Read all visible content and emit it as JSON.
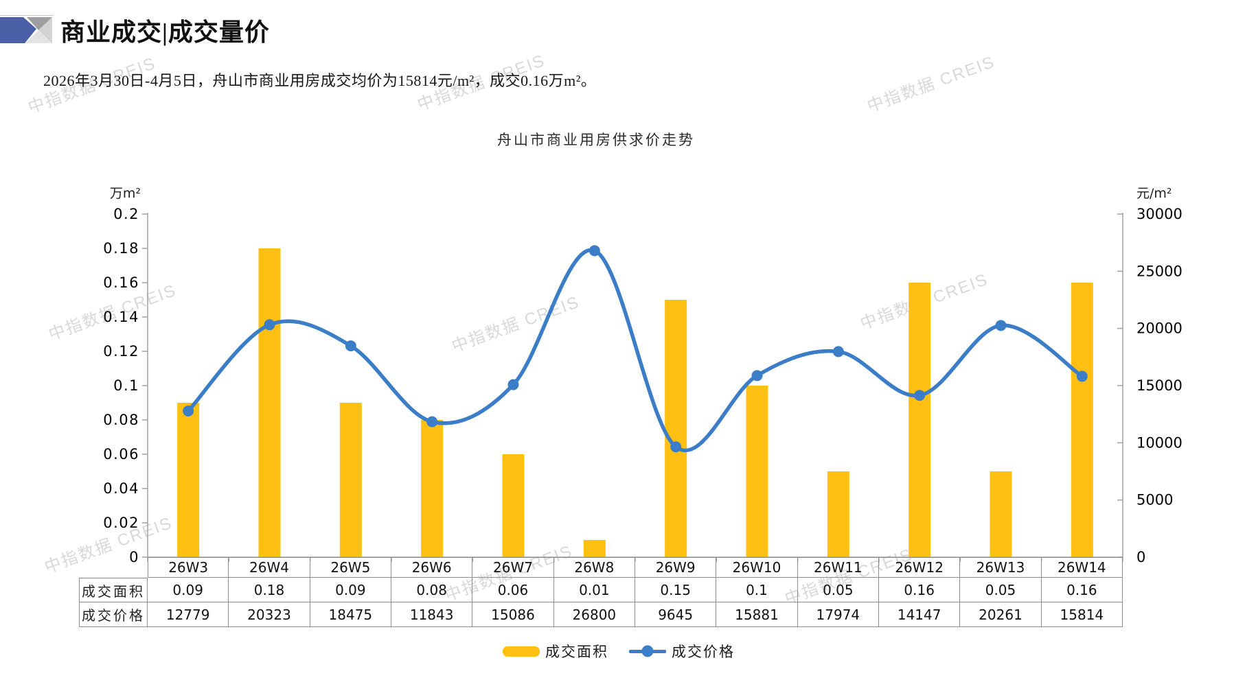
{
  "page": {
    "title": "商业成交|成交量价",
    "subtitle": "2026年3月30日-4月5日，舟山市商业用房成交均价为15814元/m²，成交0.16万m²。",
    "watermark_text": "中指数据 CREIS"
  },
  "colors": {
    "bar": "#FFC013",
    "line": "#3C7DC7",
    "axis": "#A6A6A6",
    "table_border": "#8C8C8C",
    "watermark": "#BDBDBD",
    "logo_blue": "#4A5FA5",
    "logo_gray_dark": "#9E9EA0",
    "logo_gray_light": "#D2D2D3",
    "logo_gray_pale": "#E3E3E4"
  },
  "chart_data": {
    "type": "bar+line",
    "title": "舟山市商业用房供求价走势",
    "categories": [
      "26W3",
      "26W4",
      "26W5",
      "26W6",
      "26W7",
      "26W8",
      "26W9",
      "26W10",
      "26W11",
      "26W12",
      "26W13",
      "26W14"
    ],
    "series": [
      {
        "name": "成交面积",
        "type": "bar",
        "axis": "left",
        "unit": "万m²",
        "color": "#FFC013",
        "values": [
          0.09,
          0.18,
          0.09,
          0.08,
          0.06,
          0.01,
          0.15,
          0.1,
          0.05,
          0.16,
          0.05,
          0.16
        ]
      },
      {
        "name": "成交价格",
        "type": "line",
        "axis": "right",
        "unit": "元/m²",
        "color": "#3C7DC7",
        "values": [
          12779,
          20323,
          18475,
          11843,
          15086,
          26800,
          9645,
          15881,
          17974,
          14147,
          20261,
          15814
        ]
      }
    ],
    "left_axis": {
      "label": "万m²",
      "min": 0,
      "max": 0.2,
      "step": 0.02
    },
    "right_axis": {
      "label": "元/m²",
      "min": 0,
      "max": 30000,
      "step": 5000
    },
    "grid": false,
    "legend_position": "bottom"
  },
  "table": {
    "row_headers": [
      "成交面积",
      "成交价格"
    ],
    "columns": [
      "26W3",
      "26W4",
      "26W5",
      "26W6",
      "26W7",
      "26W8",
      "26W9",
      "26W10",
      "26W11",
      "26W12",
      "26W13",
      "26W14"
    ],
    "rows": [
      [
        "0.09",
        "0.18",
        "0.09",
        "0.08",
        "0.06",
        "0.01",
        "0.15",
        "0.1",
        "0.05",
        "0.16",
        "0.05",
        "0.16"
      ],
      [
        "12779",
        "20323",
        "18475",
        "11843",
        "15086",
        "26800",
        "9645",
        "15881",
        "17974",
        "14147",
        "20261",
        "15814"
      ]
    ]
  },
  "legend": {
    "items": [
      {
        "label": "成交面积",
        "color": "#FFC013",
        "marker": "bar"
      },
      {
        "label": "成交价格",
        "color": "#3C7DC7",
        "marker": "line-dot"
      }
    ]
  }
}
